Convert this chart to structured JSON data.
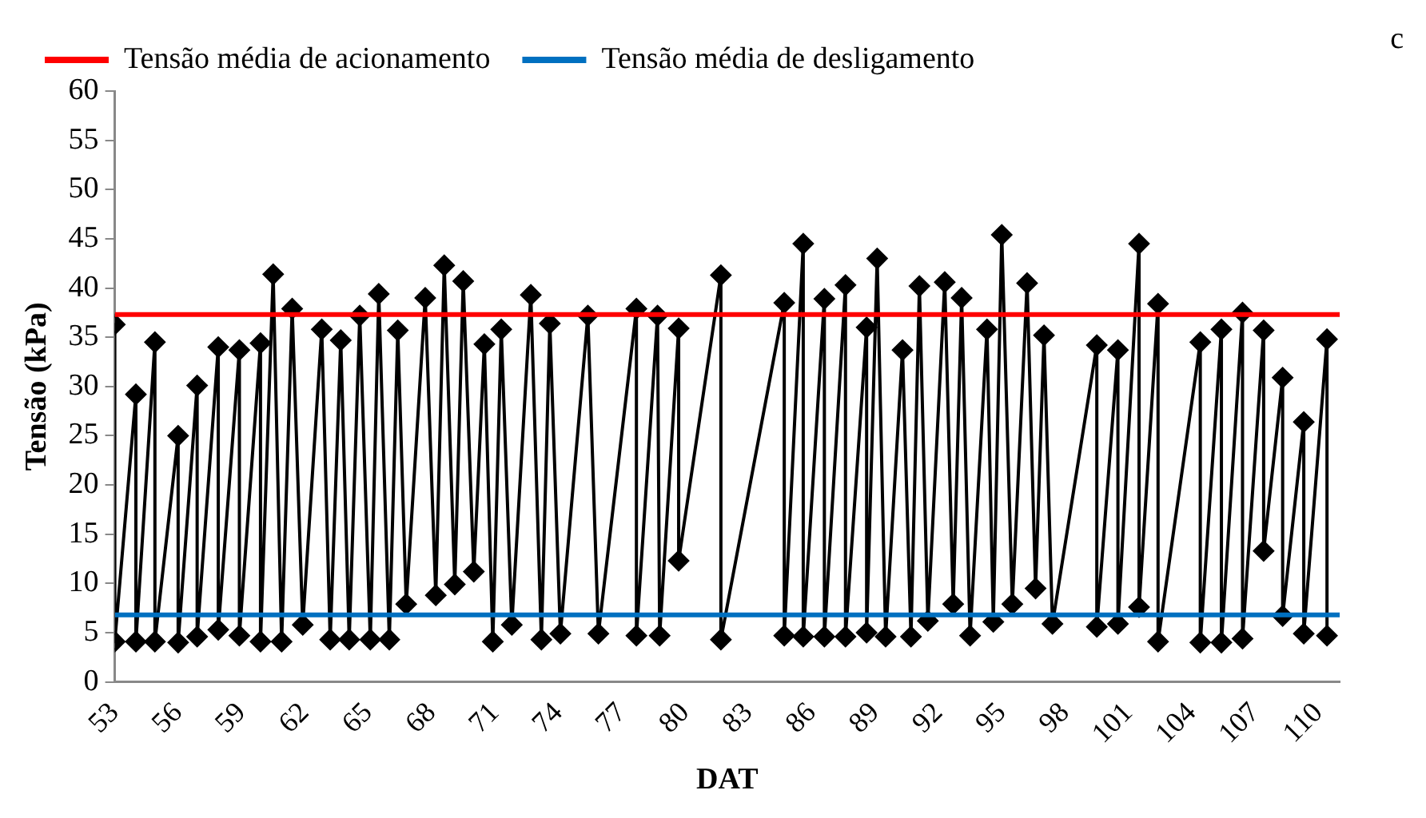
{
  "chart_data": {
    "type": "line",
    "xlabel": "DAT",
    "ylabel": "Tensão (kPa)",
    "annotations": [
      "c"
    ],
    "xlim": [
      53,
      111
    ],
    "xticks": [
      53,
      56,
      59,
      62,
      65,
      68,
      71,
      74,
      77,
      80,
      83,
      86,
      89,
      92,
      95,
      98,
      101,
      104,
      107,
      110
    ],
    "ylim": [
      0,
      60
    ],
    "yticks": [
      0,
      5,
      10,
      15,
      20,
      25,
      30,
      35,
      40,
      45,
      50,
      55,
      60
    ],
    "grid": false,
    "legend": "top",
    "marker": "diamond",
    "line_style": "solid",
    "series": [
      {
        "color": "#000000",
        "x": [
          53.0,
          53.0,
          54.0,
          54.0,
          54.9,
          54.9,
          56.0,
          56.0,
          56.9,
          56.9,
          57.9,
          57.9,
          58.9,
          58.9,
          59.9,
          59.9,
          60.5,
          60.9,
          61.4,
          61.9,
          62.8,
          63.2,
          63.7,
          64.1,
          64.6,
          65.1,
          65.5,
          66.0,
          66.4,
          66.8,
          67.7,
          68.2,
          68.6,
          69.1,
          69.5,
          70.0,
          70.5,
          70.9,
          71.3,
          71.8,
          72.7,
          73.2,
          73.6,
          74.1,
          75.4,
          75.9,
          77.7,
          77.7,
          78.7,
          78.8,
          79.7,
          79.7,
          81.7,
          81.7,
          84.7,
          84.7,
          85.6,
          85.6,
          86.6,
          86.6,
          87.6,
          87.6,
          88.6,
          88.6,
          89.1,
          89.5,
          90.3,
          90.7,
          91.1,
          91.5,
          92.3,
          92.7,
          93.1,
          93.5,
          94.3,
          94.6,
          95.0,
          95.5,
          96.2,
          96.6,
          97.0,
          97.4,
          99.5,
          99.5,
          100.5,
          100.5,
          101.5,
          101.5,
          102.4,
          102.4,
          104.4,
          104.4,
          105.4,
          105.4,
          106.4,
          106.4,
          107.4,
          107.4,
          108.3,
          108.3,
          109.3,
          109.3,
          110.4,
          110.4
        ],
        "values": [
          36.3,
          4.1,
          29.2,
          4.1,
          34.5,
          4.1,
          25.0,
          4.0,
          30.1,
          4.6,
          34.0,
          5.3,
          33.7,
          4.7,
          34.4,
          4.1,
          41.4,
          4.1,
          37.9,
          5.8,
          35.8,
          4.3,
          34.7,
          4.3,
          37.2,
          4.3,
          39.4,
          4.3,
          35.7,
          7.9,
          39.0,
          8.8,
          42.3,
          9.9,
          40.7,
          11.2,
          34.3,
          4.1,
          35.8,
          5.8,
          39.3,
          4.3,
          36.4,
          4.9,
          37.2,
          4.9,
          37.9,
          4.7,
          37.2,
          4.7,
          35.9,
          12.3,
          41.3,
          4.3,
          38.5,
          4.7,
          44.5,
          4.6,
          38.9,
          4.6,
          40.3,
          4.6,
          36.0,
          5.0,
          43.0,
          4.6,
          33.7,
          4.6,
          40.2,
          6.2,
          40.6,
          7.9,
          39.0,
          4.7,
          35.8,
          6.1,
          45.4,
          7.9,
          40.5,
          9.5,
          35.2,
          5.9,
          34.2,
          5.6,
          33.7,
          5.9,
          44.5,
          7.6,
          38.4,
          4.1,
          34.5,
          4.0,
          35.8,
          4.0,
          37.5,
          4.4,
          35.7,
          13.3,
          30.9,
          6.7,
          26.4,
          4.9,
          34.8,
          4.7
        ]
      },
      {
        "name": "Tensão média de acionamento",
        "color": "#ff0000",
        "marker": "none",
        "x": [
          53,
          111
        ],
        "values": [
          37.3,
          37.3
        ]
      },
      {
        "name": "Tensão média de desligamento",
        "color": "#0070c0",
        "marker": "none",
        "x": [
          53,
          111
        ],
        "values": [
          6.8,
          6.8
        ]
      }
    ]
  }
}
